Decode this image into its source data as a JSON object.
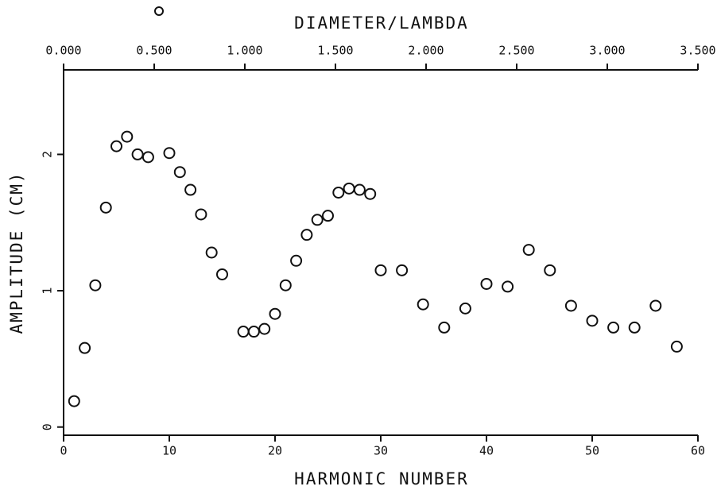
{
  "chart_data": {
    "type": "scatter",
    "title": "DIAMETER/LAMBDA",
    "x_label": "HARMONIC NUMBER",
    "y_label": "AMPLITUDE (CM)",
    "x": [
      1,
      2,
      3,
      4,
      5,
      6,
      7,
      8,
      10,
      11,
      12,
      13,
      14,
      15,
      17,
      18,
      19,
      20,
      21,
      22,
      23,
      24,
      25,
      26,
      27,
      28,
      29,
      30,
      32,
      34,
      36,
      38,
      40,
      42,
      44,
      46,
      48,
      50,
      52,
      54,
      56,
      58
    ],
    "values": [
      0.19,
      0.58,
      1.04,
      1.61,
      2.06,
      2.13,
      2.0,
      1.98,
      2.01,
      1.87,
      1.74,
      1.56,
      1.28,
      1.12,
      0.7,
      0.7,
      0.72,
      0.83,
      1.04,
      1.22,
      1.41,
      1.52,
      1.55,
      1.72,
      1.75,
      1.74,
      1.71,
      1.15,
      1.15,
      0.9,
      0.73,
      0.87,
      1.05,
      1.03,
      1.3,
      1.15,
      0.89,
      0.78,
      0.73,
      0.73,
      0.89,
      0.59
    ],
    "color": "#111111",
    "xlim": [
      0,
      60
    ],
    "xticks": [
      0,
      10,
      20,
      30,
      40,
      50,
      60
    ],
    "ylim": [
      -0.06,
      2.62
    ],
    "yticks": [
      0,
      1,
      2
    ],
    "x2lim": [
      0,
      3.5
    ],
    "x2ticks": [
      {
        "value": 0,
        "label": "0.000"
      },
      {
        "value": 0.5,
        "label": "0.500"
      },
      {
        "value": 1,
        "label": "1.000"
      },
      {
        "value": 1.5,
        "label": "1.500"
      },
      {
        "value": 2,
        "label": "2.000"
      },
      {
        "value": 2.5,
        "label": "2.500"
      },
      {
        "value": 3,
        "label": "3.000"
      },
      {
        "value": 3.5,
        "label": "3.500"
      }
    ],
    "grid": false
  }
}
